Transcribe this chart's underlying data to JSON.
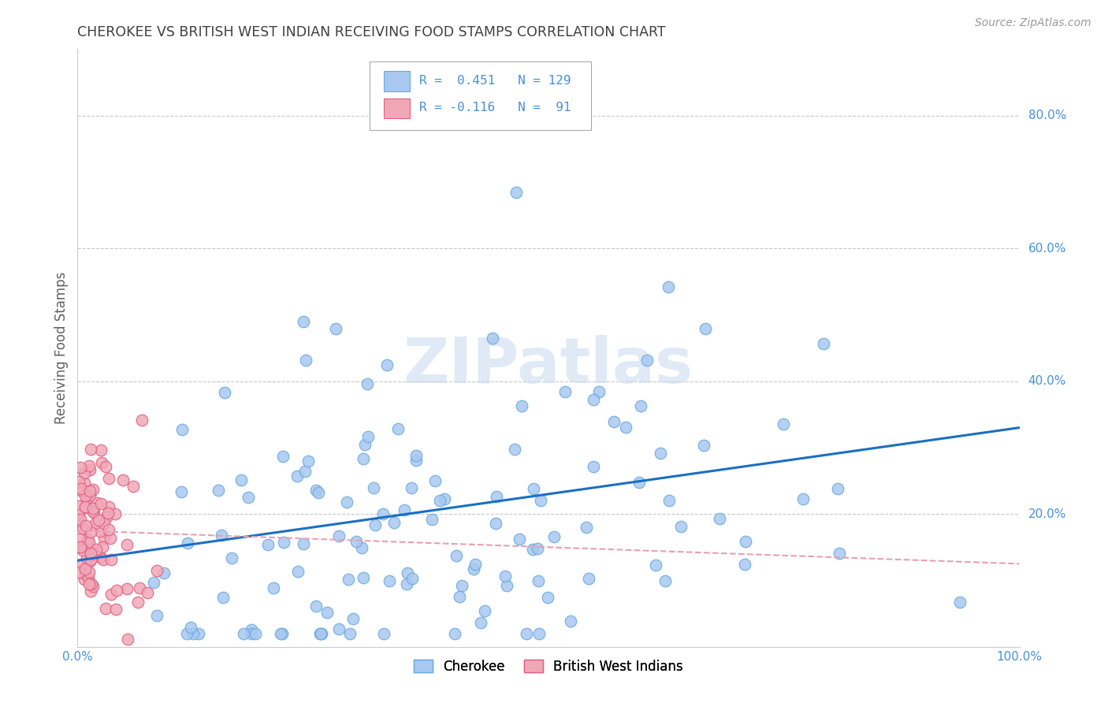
{
  "title": "CHEROKEE VS BRITISH WEST INDIAN RECEIVING FOOD STAMPS CORRELATION CHART",
  "source": "Source: ZipAtlas.com",
  "ylabel": "Receiving Food Stamps",
  "x_min": 0.0,
  "x_max": 1.0,
  "y_min": 0.0,
  "y_max": 0.9,
  "y_ticks": [
    0.2,
    0.4,
    0.6,
    0.8
  ],
  "y_tick_labels": [
    "20.0%",
    "40.0%",
    "60.0%",
    "80.0%"
  ],
  "cherokee_color": "#a8c8f0",
  "cherokee_edge_color": "#6aaae0",
  "bwi_color": "#f0a8b8",
  "bwi_edge_color": "#e06080",
  "cherokee_line_color": "#1a6fc4",
  "bwi_line_color": "#e8a0b0",
  "cherokee_R": 0.451,
  "cherokee_N": 129,
  "bwi_R": -0.116,
  "bwi_N": 91,
  "watermark": "ZIPatlas",
  "grid_color": "#c8c8c8",
  "background_color": "#ffffff",
  "title_color": "#404040",
  "axis_label_color": "#606060",
  "tick_label_color": "#4a90d9",
  "legend_R_color": "#4a90d9",
  "cherokee_seed": 42,
  "bwi_seed": 7
}
